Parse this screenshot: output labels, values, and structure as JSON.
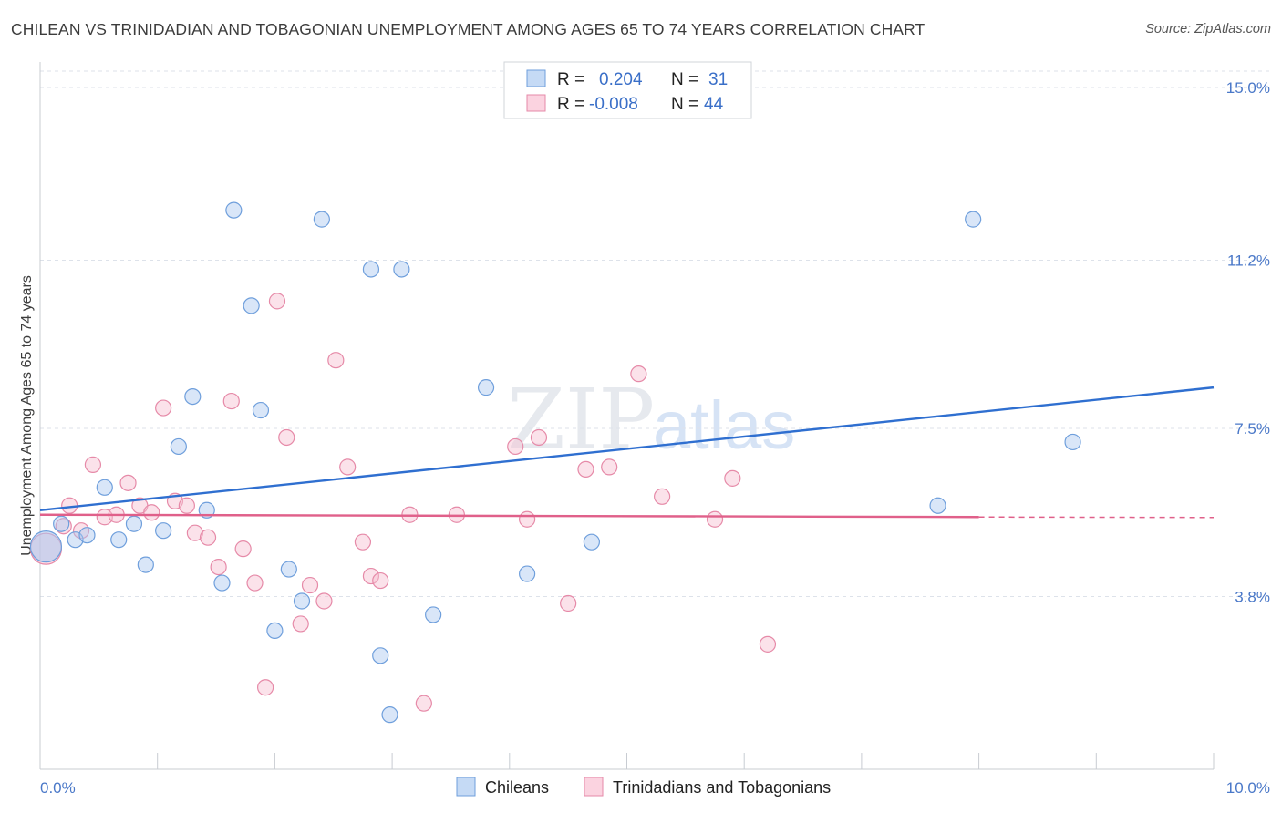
{
  "header": {
    "title": "CHILEAN VS TRINIDADIAN AND TOBAGONIAN UNEMPLOYMENT AMONG AGES 65 TO 74 YEARS CORRELATION CHART",
    "source": "Source: ZipAtlas.com"
  },
  "watermark": {
    "part1": "ZIP",
    "part2": "atlas"
  },
  "colors": {
    "blue_fill": "#aac8f0",
    "blue_stroke": "#6f9fdc",
    "blue_line": "#2f6fd0",
    "pink_fill": "#f7bfd0",
    "pink_stroke": "#e68aa8",
    "pink_line": "#e0608a",
    "tick_label": "#4a78c8",
    "grid": "#dde2ea"
  },
  "legend_box": {
    "rows": [
      {
        "r_label": "R =",
        "r_value": "0.204",
        "n_label": "N =",
        "n_value": "31"
      },
      {
        "r_label": "R =",
        "r_value": "-0.008",
        "n_label": "N =",
        "n_value": "44"
      }
    ]
  },
  "chart_data": {
    "type": "scatter",
    "title": "CHILEAN VS TRINIDADIAN AND TOBAGONIAN UNEMPLOYMENT AMONG AGES 65 TO 74 YEARS CORRELATION CHART",
    "xlabel": "",
    "ylabel": "Unemployment Among Ages 65 to 74 years",
    "xlim": [
      0,
      10
    ],
    "ylim": [
      0,
      15.5
    ],
    "x_tick_labels": [
      "0.0%",
      "10.0%"
    ],
    "y_ticks": [
      3.8,
      7.5,
      11.2,
      15.0
    ],
    "y_tick_labels": [
      "3.8%",
      "7.5%",
      "11.2%",
      "15.0%"
    ],
    "grid": "horizontal dashed",
    "legend_position": "bottom",
    "series": [
      {
        "name": "Chileans",
        "color": "#aac8f0",
        "r": 0.204,
        "n": 31,
        "trend": {
          "x": [
            0.0,
            10.0
          ],
          "y": [
            5.7,
            8.4
          ]
        },
        "points": [
          {
            "x": 0.05,
            "y": 4.9,
            "big": true
          },
          {
            "x": 0.18,
            "y": 5.4
          },
          {
            "x": 0.3,
            "y": 5.05
          },
          {
            "x": 0.4,
            "y": 5.15
          },
          {
            "x": 0.55,
            "y": 6.2
          },
          {
            "x": 0.67,
            "y": 5.05
          },
          {
            "x": 0.8,
            "y": 5.4
          },
          {
            "x": 0.9,
            "y": 4.5
          },
          {
            "x": 1.05,
            "y": 5.25
          },
          {
            "x": 1.18,
            "y": 7.1
          },
          {
            "x": 1.3,
            "y": 8.2
          },
          {
            "x": 1.42,
            "y": 5.7
          },
          {
            "x": 1.55,
            "y": 4.1
          },
          {
            "x": 1.65,
            "y": 12.3
          },
          {
            "x": 1.8,
            "y": 10.2
          },
          {
            "x": 1.88,
            "y": 7.9
          },
          {
            "x": 2.0,
            "y": 3.05
          },
          {
            "x": 2.12,
            "y": 4.4
          },
          {
            "x": 2.23,
            "y": 3.7
          },
          {
            "x": 2.4,
            "y": 12.1
          },
          {
            "x": 2.82,
            "y": 11.0
          },
          {
            "x": 2.9,
            "y": 2.5
          },
          {
            "x": 2.98,
            "y": 1.2
          },
          {
            "x": 3.08,
            "y": 11.0
          },
          {
            "x": 3.35,
            "y": 3.4
          },
          {
            "x": 3.8,
            "y": 8.4
          },
          {
            "x": 4.15,
            "y": 4.3
          },
          {
            "x": 4.7,
            "y": 5.0
          },
          {
            "x": 7.65,
            "y": 5.8
          },
          {
            "x": 7.95,
            "y": 12.1
          },
          {
            "x": 8.8,
            "y": 7.2
          }
        ]
      },
      {
        "name": "Trinidadians and Tobagonians",
        "color": "#f7bfd0",
        "r": -0.008,
        "n": 44,
        "trend": {
          "x": [
            0.0,
            8.0
          ],
          "y": [
            5.6,
            5.55
          ]
        },
        "trend_dashed_extension": {
          "x": [
            8.0,
            10.0
          ],
          "y": [
            5.55,
            5.54
          ]
        },
        "points": [
          {
            "x": 0.05,
            "y": 4.85,
            "big": true
          },
          {
            "x": 0.2,
            "y": 5.35
          },
          {
            "x": 0.25,
            "y": 5.8
          },
          {
            "x": 0.35,
            "y": 5.25
          },
          {
            "x": 0.45,
            "y": 6.7
          },
          {
            "x": 0.55,
            "y": 5.55
          },
          {
            "x": 0.65,
            "y": 5.6
          },
          {
            "x": 0.75,
            "y": 6.3
          },
          {
            "x": 0.85,
            "y": 5.8
          },
          {
            "x": 0.95,
            "y": 5.65
          },
          {
            "x": 1.05,
            "y": 7.95
          },
          {
            "x": 1.15,
            "y": 5.9
          },
          {
            "x": 1.25,
            "y": 5.8
          },
          {
            "x": 1.32,
            "y": 5.2
          },
          {
            "x": 1.43,
            "y": 5.1
          },
          {
            "x": 1.52,
            "y": 4.45
          },
          {
            "x": 1.63,
            "y": 8.1
          },
          {
            "x": 1.73,
            "y": 4.85
          },
          {
            "x": 1.83,
            "y": 4.1
          },
          {
            "x": 1.92,
            "y": 1.8
          },
          {
            "x": 2.02,
            "y": 10.3
          },
          {
            "x": 2.1,
            "y": 7.3
          },
          {
            "x": 2.22,
            "y": 3.2
          },
          {
            "x": 2.3,
            "y": 4.05
          },
          {
            "x": 2.42,
            "y": 3.7
          },
          {
            "x": 2.52,
            "y": 9.0
          },
          {
            "x": 2.62,
            "y": 6.65
          },
          {
            "x": 2.75,
            "y": 5.0
          },
          {
            "x": 2.82,
            "y": 4.25
          },
          {
            "x": 2.9,
            "y": 4.15
          },
          {
            "x": 3.15,
            "y": 5.6
          },
          {
            "x": 3.27,
            "y": 1.45
          },
          {
            "x": 3.55,
            "y": 5.6
          },
          {
            "x": 4.05,
            "y": 7.1
          },
          {
            "x": 4.15,
            "y": 5.5
          },
          {
            "x": 4.25,
            "y": 7.3
          },
          {
            "x": 4.5,
            "y": 3.65
          },
          {
            "x": 4.65,
            "y": 6.6
          },
          {
            "x": 4.85,
            "y": 6.65
          },
          {
            "x": 5.1,
            "y": 8.7
          },
          {
            "x": 5.3,
            "y": 6.0
          },
          {
            "x": 5.75,
            "y": 5.5
          },
          {
            "x": 5.9,
            "y": 6.4
          },
          {
            "x": 6.2,
            "y": 2.75
          }
        ]
      }
    ]
  }
}
